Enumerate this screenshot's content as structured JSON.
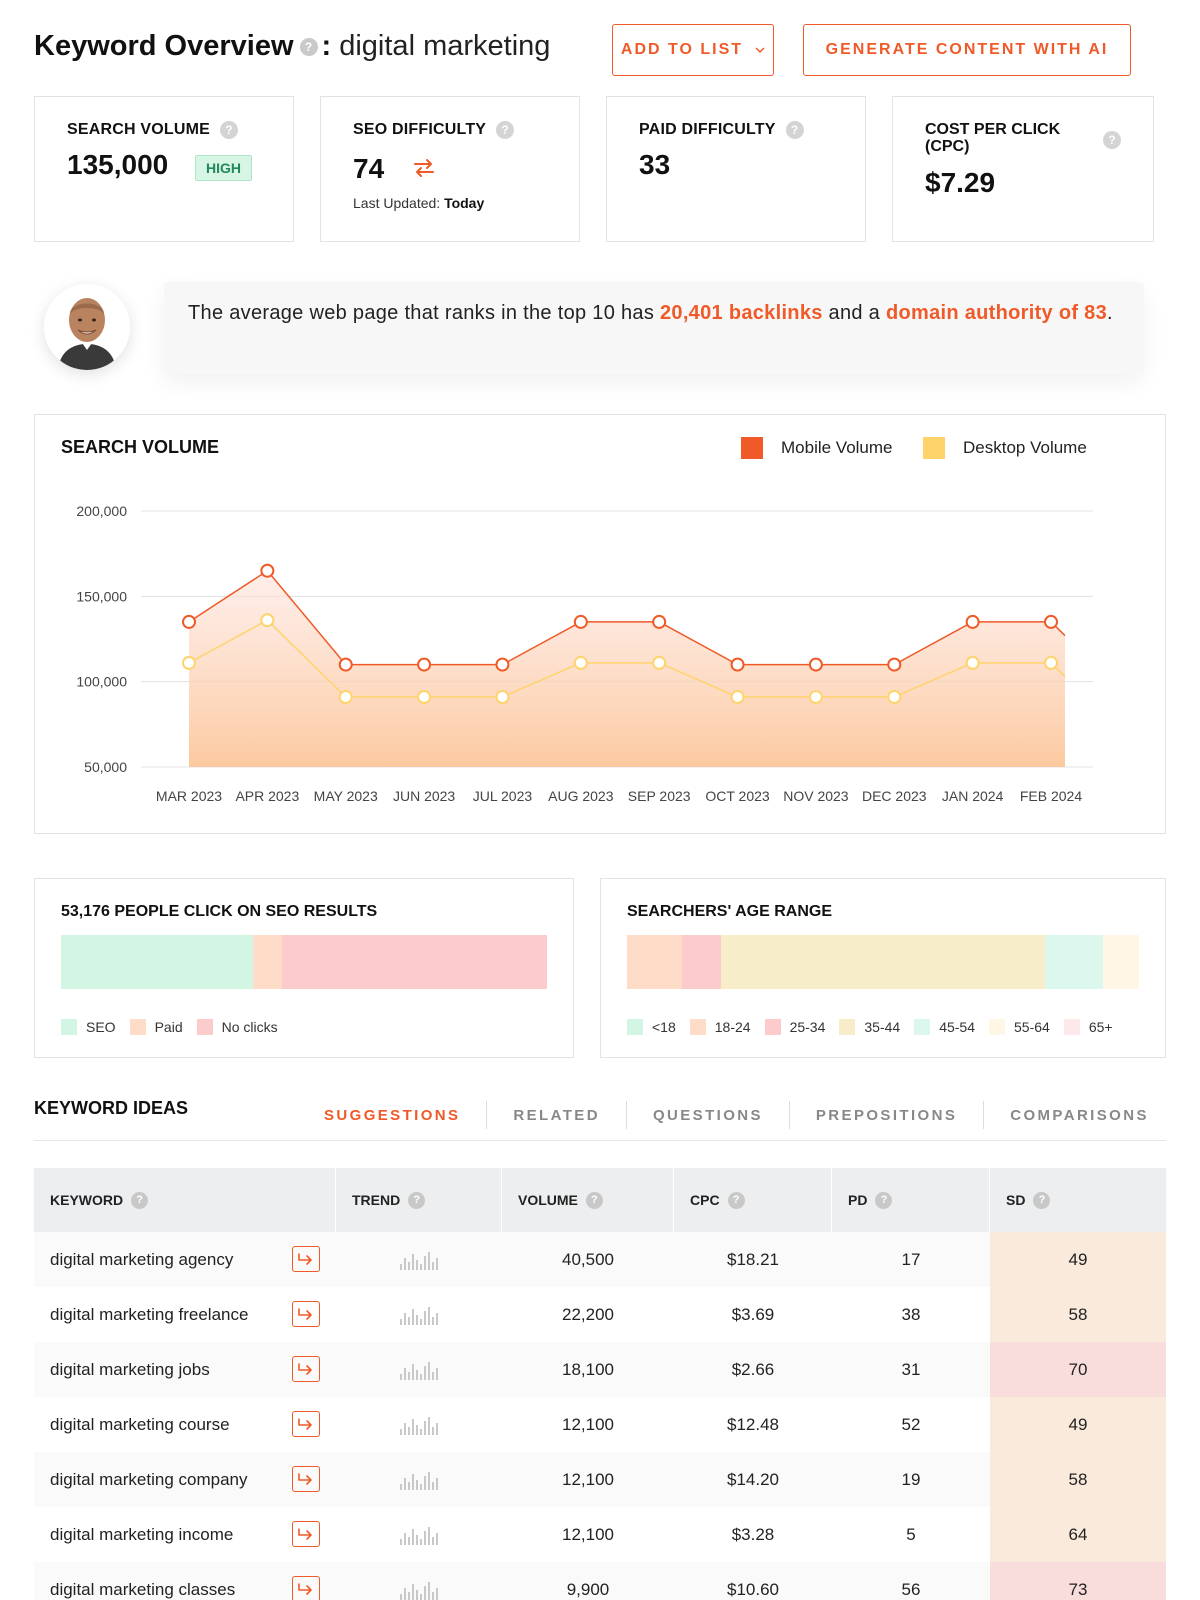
{
  "header": {
    "title": "Keyword Overview",
    "help_glyph": "?",
    "separator": ":",
    "keyword": "digital marketing",
    "add_to_list_label": "ADD TO LIST",
    "generate_label": "GENERATE CONTENT WITH AI"
  },
  "metrics": {
    "search_volume": {
      "label": "SEARCH VOLUME",
      "value": "135,000",
      "badge": "HIGH"
    },
    "seo_difficulty": {
      "label": "SEO DIFFICULTY",
      "value": "74",
      "updated_label": "Last Updated:",
      "updated_value": "Today"
    },
    "paid_difficulty": {
      "label": "PAID DIFFICULTY",
      "value": "33"
    },
    "cpc": {
      "label": "COST PER CLICK (CPC)",
      "value": "$7.29"
    }
  },
  "insight": {
    "text_1": "The average web page that ranks in the top 10 has ",
    "backlinks": "20,401 backlinks",
    "text_2": " and a ",
    "authority": "domain authority of 83",
    "text_3": "."
  },
  "chart_data": {
    "type": "area",
    "title": "SEARCH VOLUME",
    "categories": [
      "MAR 2023",
      "APR 2023",
      "MAY 2023",
      "JUN 2023",
      "JUL 2023",
      "AUG 2023",
      "SEP 2023",
      "OCT 2023",
      "NOV 2023",
      "DEC 2023",
      "JAN 2024",
      "FEB 2024"
    ],
    "series": [
      {
        "name": "Mobile Volume",
        "color": "#f05a28",
        "values": [
          135000,
          165000,
          110000,
          110000,
          110000,
          135000,
          135000,
          110000,
          110000,
          110000,
          135000,
          135000
        ]
      },
      {
        "name": "Desktop Volume",
        "color": "#ffd36b",
        "values": [
          111000,
          136000,
          91000,
          91000,
          91000,
          111000,
          111000,
          91000,
          91000,
          91000,
          111000,
          111000
        ]
      }
    ],
    "yticks": [
      "200,000",
      "150,000",
      "100,000",
      "50,000"
    ],
    "ylim": [
      50000,
      200000
    ],
    "grid": true,
    "legend": "top-right"
  },
  "seo_clicks": {
    "title": "53,176 PEOPLE CLICK ON SEO RESULTS",
    "segments": [
      {
        "label": "SEO",
        "share": 0.395,
        "color": "#d3f5e4"
      },
      {
        "label": "Paid",
        "share": 0.06,
        "color": "#ffdcc8"
      },
      {
        "label": "No clicks",
        "share": 0.545,
        "color": "#fccccd"
      }
    ]
  },
  "age_range": {
    "title": "SEARCHERS' AGE RANGE",
    "segments": [
      {
        "label": "<18",
        "share": 0.0,
        "color": "#d3f5e4"
      },
      {
        "label": "18-24",
        "share": 0.108,
        "color": "#ffdcc8"
      },
      {
        "label": "25-34",
        "share": 0.075,
        "color": "#fccccd"
      },
      {
        "label": "35-44",
        "share": 0.633,
        "color": "#f7edc8"
      },
      {
        "label": "45-54",
        "share": 0.113,
        "color": "#dcf8ee"
      },
      {
        "label": "55-64",
        "share": 0.071,
        "color": "#fff6e6"
      },
      {
        "label": "65+",
        "share": 0.0,
        "color": "#fde9ea"
      }
    ]
  },
  "keyword_ideas": {
    "title": "KEYWORD IDEAS",
    "tabs": [
      "SUGGESTIONS",
      "RELATED",
      "QUESTIONS",
      "PREPOSITIONS",
      "COMPARISONS"
    ],
    "active_tab": "SUGGESTIONS",
    "columns": [
      "KEYWORD",
      "TREND",
      "VOLUME",
      "CPC",
      "PD",
      "SD"
    ],
    "rows": [
      {
        "keyword": "digital marketing agency",
        "volume": "40,500",
        "cpc": "$18.21",
        "pd": "17",
        "sd": "49",
        "sd_color": "#faeadb"
      },
      {
        "keyword": "digital marketing freelance",
        "volume": "22,200",
        "cpc": "$3.69",
        "pd": "38",
        "sd": "58",
        "sd_color": "#faeadb"
      },
      {
        "keyword": "digital marketing jobs",
        "volume": "18,100",
        "cpc": "$2.66",
        "pd": "31",
        "sd": "70",
        "sd_color": "#f9dcdc"
      },
      {
        "keyword": "digital marketing course",
        "volume": "12,100",
        "cpc": "$12.48",
        "pd": "52",
        "sd": "49",
        "sd_color": "#faeadb"
      },
      {
        "keyword": "digital marketing company",
        "volume": "12,100",
        "cpc": "$14.20",
        "pd": "19",
        "sd": "58",
        "sd_color": "#faeadb"
      },
      {
        "keyword": "digital marketing income",
        "volume": "12,100",
        "cpc": "$3.28",
        "pd": "5",
        "sd": "64",
        "sd_color": "#faeadb"
      },
      {
        "keyword": "digital marketing classes",
        "volume": "9,900",
        "cpc": "$10.60",
        "pd": "56",
        "sd": "73",
        "sd_color": "#f9dcdc"
      }
    ]
  },
  "icons": {
    "help": "help-icon",
    "swap": "swap-icon",
    "external": "open-keyword-icon",
    "trend": "trend-bars-icon",
    "chevron": "chevron-down-icon"
  }
}
